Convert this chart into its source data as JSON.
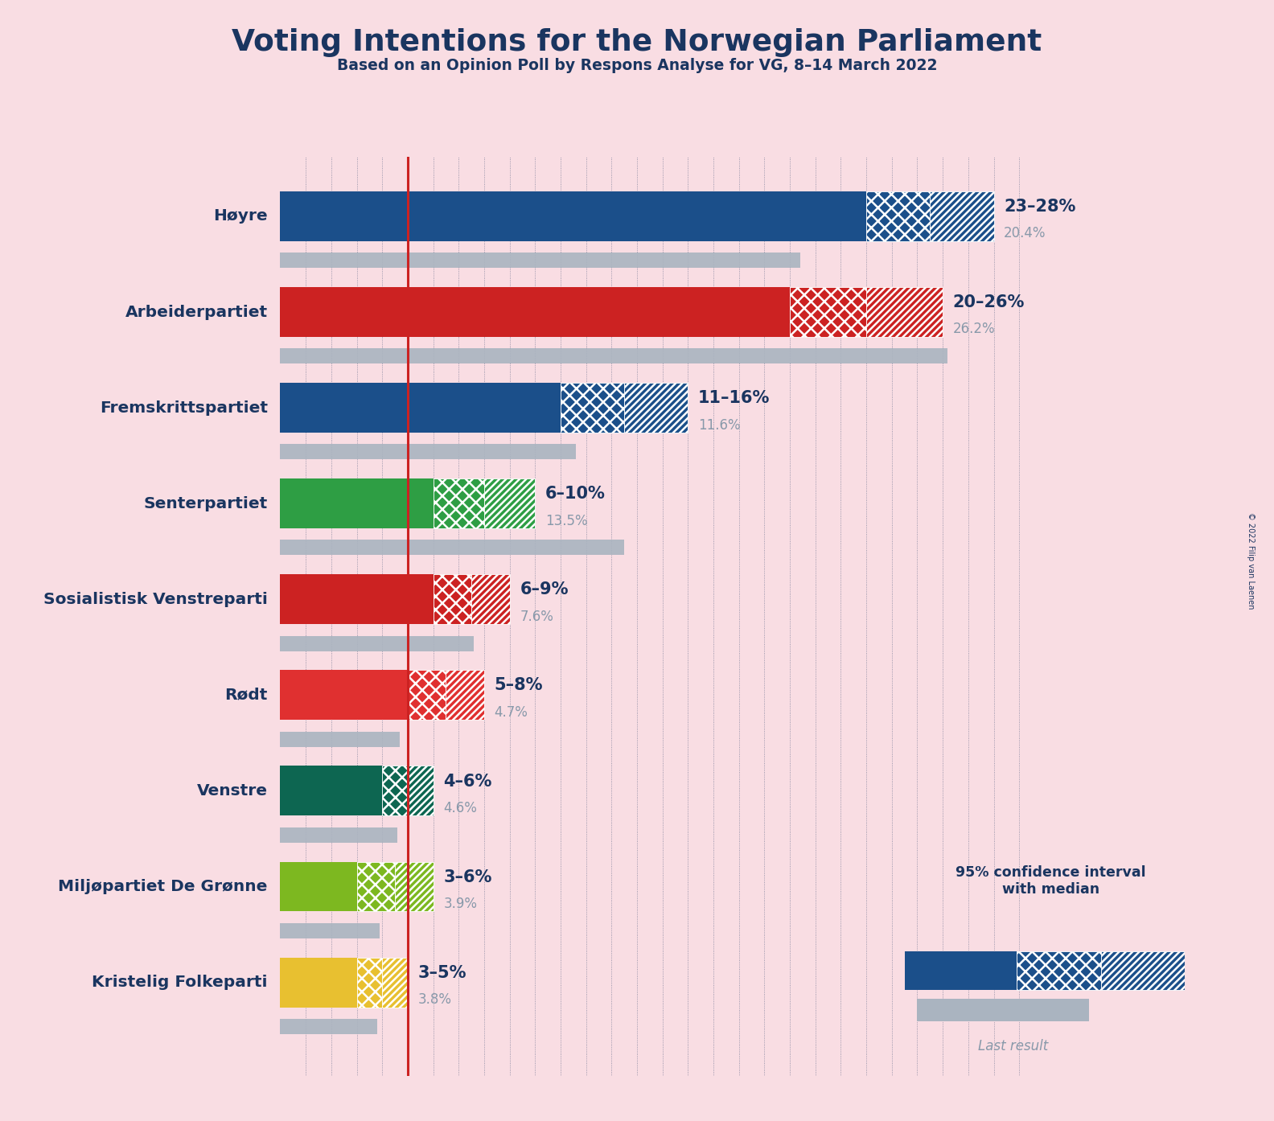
{
  "title": "Voting Intentions for the Norwegian Parliament",
  "subtitle": "Based on an Opinion Poll by Respons Analyse for VG, 8–14 March 2022",
  "copyright": "© 2022 Filip van Laenen",
  "background_color": "#f9dde3",
  "parties": [
    {
      "name": "Høyre",
      "ci_low": 23,
      "ci_high": 28,
      "median": 25.5,
      "last_result": 20.4,
      "color": "#1b4f8a",
      "label": "23–28%",
      "last_label": "20.4%"
    },
    {
      "name": "Arbeiderpartiet",
      "ci_low": 20,
      "ci_high": 26,
      "median": 23,
      "last_result": 26.2,
      "color": "#cc2222",
      "label": "20–26%",
      "last_label": "26.2%"
    },
    {
      "name": "Fremskrittspartiet",
      "ci_low": 11,
      "ci_high": 16,
      "median": 13.5,
      "last_result": 11.6,
      "color": "#1b4f8a",
      "label": "11–16%",
      "last_label": "11.6%"
    },
    {
      "name": "Senterpartiet",
      "ci_low": 6,
      "ci_high": 10,
      "median": 8,
      "last_result": 13.5,
      "color": "#2e9e44",
      "label": "6–10%",
      "last_label": "13.5%"
    },
    {
      "name": "Sosialistisk Venstreparti",
      "ci_low": 6,
      "ci_high": 9,
      "median": 7.5,
      "last_result": 7.6,
      "color": "#cc2222",
      "label": "6–9%",
      "last_label": "7.6%"
    },
    {
      "name": "Rødt",
      "ci_low": 5,
      "ci_high": 8,
      "median": 6.5,
      "last_result": 4.7,
      "color": "#e03030",
      "label": "5–8%",
      "last_label": "4.7%"
    },
    {
      "name": "Venstre",
      "ci_low": 4,
      "ci_high": 6,
      "median": 5,
      "last_result": 4.6,
      "color": "#0d6651",
      "label": "4–6%",
      "last_label": "4.6%"
    },
    {
      "name": "Miljøpartiet De Grønne",
      "ci_low": 3,
      "ci_high": 6,
      "median": 4.5,
      "last_result": 3.9,
      "color": "#7db820",
      "label": "3–6%",
      "last_label": "3.9%"
    },
    {
      "name": "Kristelig Folkeparti",
      "ci_low": 3,
      "ci_high": 5,
      "median": 4,
      "last_result": 3.8,
      "color": "#e8c030",
      "label": "3–5%",
      "last_label": "3.8%"
    }
  ],
  "xlim": [
    0,
    30
  ],
  "red_line_x": 5.0,
  "text_color_dark": "#1a3560",
  "text_color_gray": "#8899aa",
  "last_bar_color": "#aab4c0",
  "hatch_edge_color": "#ffffff"
}
